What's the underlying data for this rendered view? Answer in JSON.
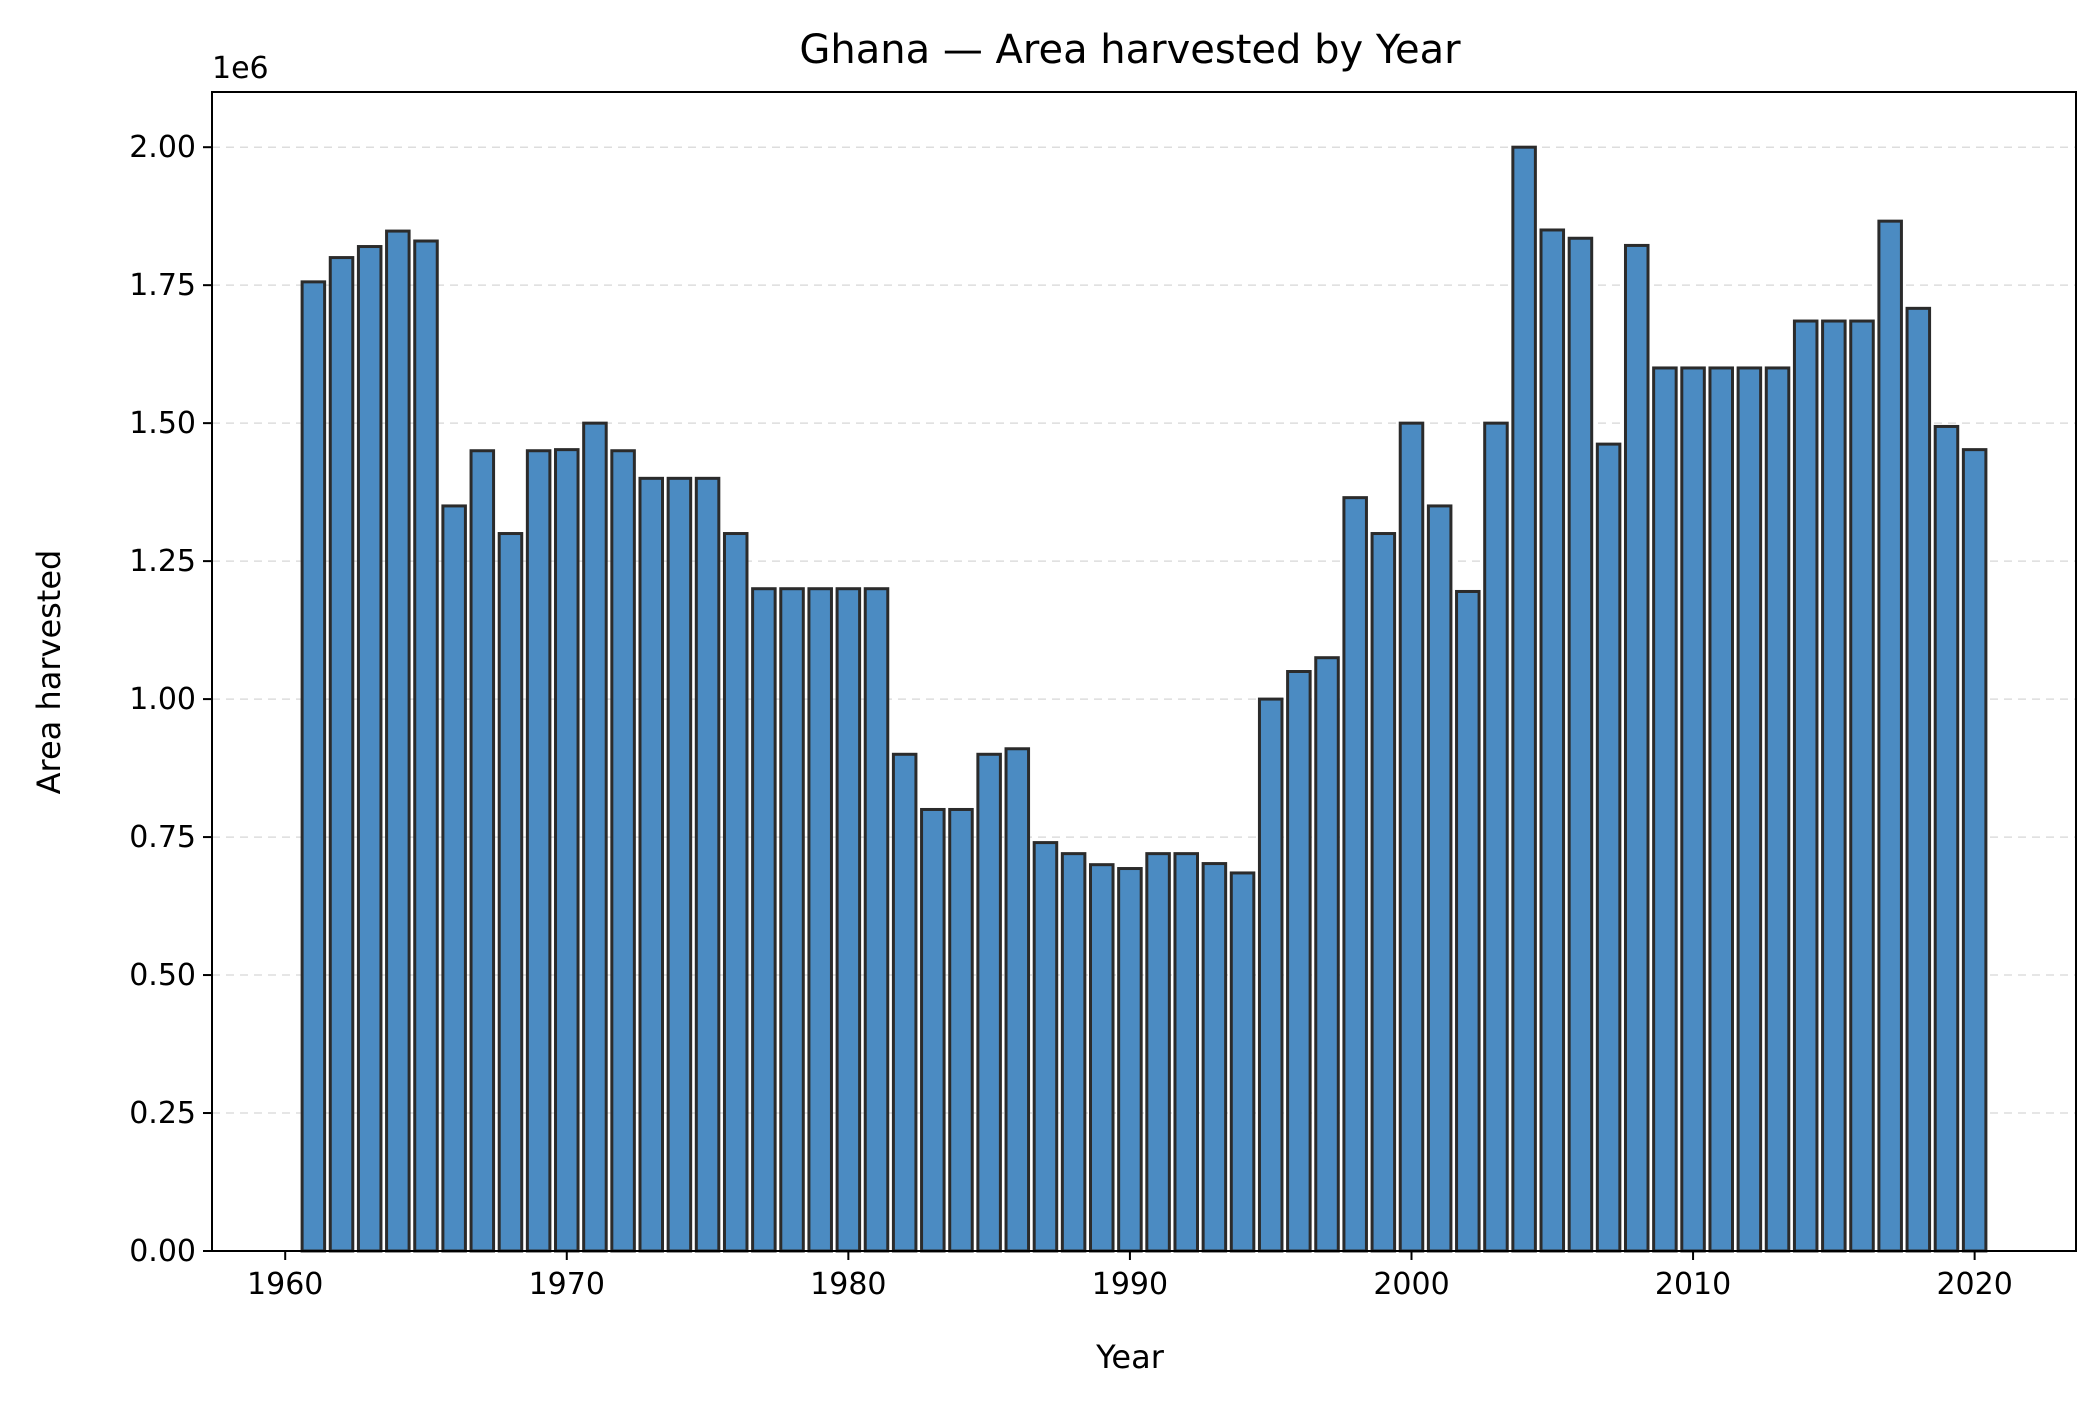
{
  "chart_data": {
    "type": "bar",
    "title": "Ghana — Area harvested by Year",
    "xlabel": "Year",
    "ylabel": "Area harvested",
    "offset_label": "1e6",
    "x": [
      1961,
      1962,
      1963,
      1964,
      1965,
      1966,
      1967,
      1968,
      1969,
      1970,
      1971,
      1972,
      1973,
      1974,
      1975,
      1976,
      1977,
      1978,
      1979,
      1980,
      1981,
      1982,
      1983,
      1984,
      1985,
      1986,
      1987,
      1988,
      1989,
      1990,
      1991,
      1992,
      1993,
      1994,
      1995,
      1996,
      1997,
      1998,
      1999,
      2000,
      2001,
      2002,
      2003,
      2004,
      2005,
      2006,
      2007,
      2008,
      2009,
      2010,
      2011,
      2012,
      2013,
      2014,
      2015,
      2016,
      2017,
      2018,
      2019,
      2020
    ],
    "values": [
      1756000,
      1800000,
      1820000,
      1848000,
      1830000,
      1350000,
      1450000,
      1300000,
      1450000,
      1452000,
      1500000,
      1450000,
      1400000,
      1400000,
      1400000,
      1300000,
      1200000,
      1200000,
      1200000,
      1200000,
      1200000,
      900000,
      800000,
      800000,
      900000,
      910000,
      740000,
      720000,
      700000,
      693000,
      720000,
      720000,
      702000,
      685000,
      1000000,
      1050000,
      1075000,
      1365000,
      1300000,
      1500000,
      1350000,
      1195000,
      1500000,
      2000000,
      1850000,
      1835000,
      1462000,
      1822000,
      1600000,
      1600000,
      1600000,
      1600000,
      1600000,
      1685000,
      1685000,
      1685000,
      1866000,
      1708000,
      1494000,
      1452000
    ],
    "xlim": [
      1957.4,
      2023.6
    ],
    "ylim": [
      0,
      2100000
    ],
    "xticks": [
      1960,
      1970,
      1980,
      1990,
      2000,
      2010,
      2020
    ],
    "yticks": [
      0,
      250000,
      500000,
      750000,
      1000000,
      1250000,
      1500000,
      1750000,
      2000000
    ],
    "ytick_labels": [
      "0.00",
      "0.25",
      "0.50",
      "0.75",
      "1.00",
      "1.25",
      "1.50",
      "1.75",
      "2.00"
    ],
    "grid": "y-dashed",
    "legend": "none",
    "colors": {
      "bar_fill": "#4b8bc2",
      "bar_edge": "#2b2b2b",
      "grid": "#dddddd",
      "axis": "#000000"
    }
  }
}
